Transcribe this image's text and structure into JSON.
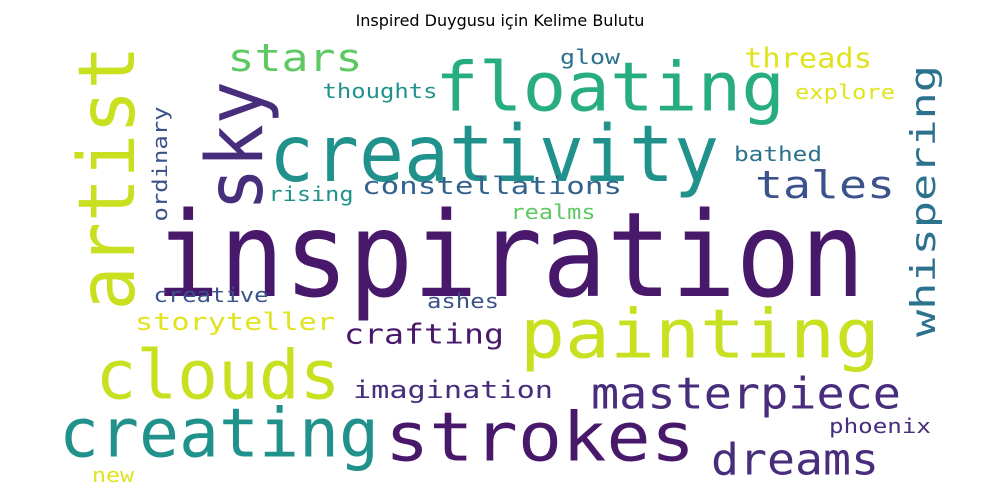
{
  "title": "Inspired Duygusu için Kelime Bulutu",
  "colors": {
    "dark_purple": "#48186a",
    "purple": "#472d7b",
    "indigo": "#3b528b",
    "blue": "#33638d",
    "teal_blue": "#2c728e",
    "teal": "#21918c",
    "sea_green": "#27ad81",
    "green": "#5ec962",
    "lime": "#c8e020",
    "yellow": "#e1e31f"
  },
  "words": [
    {
      "text": "inspiration",
      "color": "dark_purple"
    },
    {
      "text": "creativity",
      "color": "teal"
    },
    {
      "text": "floating",
      "color": "sea_green"
    },
    {
      "text": "painting",
      "color": "lime"
    },
    {
      "text": "strokes",
      "color": "dark_purple"
    },
    {
      "text": "clouds",
      "color": "lime"
    },
    {
      "text": "creating",
      "color": "teal"
    },
    {
      "text": "artist",
      "color": "lime"
    },
    {
      "text": "sky",
      "color": "purple"
    },
    {
      "text": "masterpiece",
      "color": "purple"
    },
    {
      "text": "dreams",
      "color": "purple"
    },
    {
      "text": "whispering",
      "color": "teal_blue"
    },
    {
      "text": "tales",
      "color": "indigo"
    },
    {
      "text": "stars",
      "color": "green"
    },
    {
      "text": "threads",
      "color": "yellow"
    },
    {
      "text": "constellations",
      "color": "blue"
    },
    {
      "text": "crafting",
      "color": "dark_purple"
    },
    {
      "text": "imagination",
      "color": "purple"
    },
    {
      "text": "storyteller",
      "color": "yellow"
    },
    {
      "text": "thoughts",
      "color": "teal"
    },
    {
      "text": "glow",
      "color": "teal_blue"
    },
    {
      "text": "explore",
      "color": "yellow"
    },
    {
      "text": "bathed",
      "color": "teal_blue"
    },
    {
      "text": "ordinary",
      "color": "indigo"
    },
    {
      "text": "rising",
      "color": "teal"
    },
    {
      "text": "realms",
      "color": "green"
    },
    {
      "text": "creative",
      "color": "indigo"
    },
    {
      "text": "ashes",
      "color": "indigo"
    },
    {
      "text": "phoenix",
      "color": "purple"
    },
    {
      "text": "new",
      "color": "yellow"
    }
  ]
}
